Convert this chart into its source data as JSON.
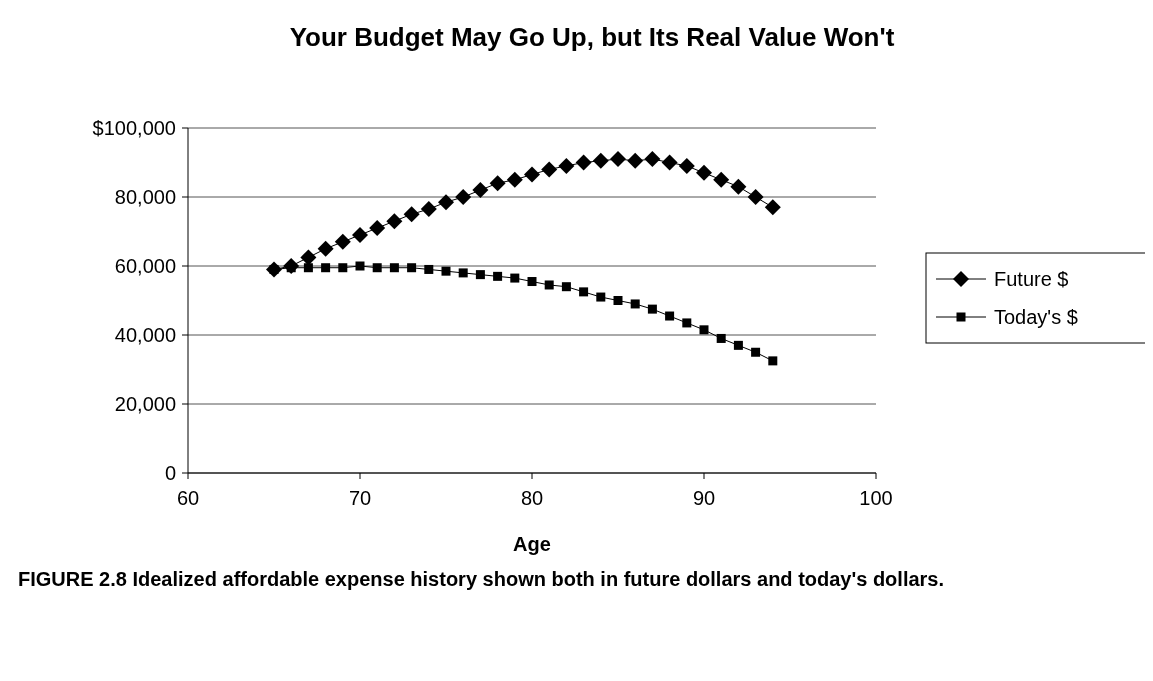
{
  "chart_data": {
    "type": "line",
    "title": "Your Budget May Go Up, but Its Real Value Won't",
    "xlabel": "Age",
    "x": [
      65,
      66,
      67,
      68,
      69,
      70,
      71,
      72,
      73,
      74,
      75,
      76,
      77,
      78,
      79,
      80,
      81,
      82,
      83,
      84,
      85,
      86,
      87,
      88,
      89,
      90,
      91,
      92,
      93,
      94
    ],
    "series": [
      {
        "name": "Future $",
        "color": "#000000",
        "marker": "diamond",
        "values": [
          59000,
          60000,
          62500,
          65000,
          67000,
          69000,
          71000,
          73000,
          75000,
          76500,
          78500,
          80000,
          82000,
          84000,
          85000,
          86500,
          88000,
          89000,
          90000,
          90500,
          91000,
          90500,
          91000,
          90000,
          89000,
          87000,
          85000,
          83000,
          80000,
          77000
        ]
      },
      {
        "name": "Today's $",
        "color": "#000000",
        "marker": "square",
        "values": [
          59000,
          59500,
          59500,
          59500,
          59500,
          60000,
          59500,
          59500,
          59500,
          59000,
          58500,
          58000,
          57500,
          57000,
          56500,
          55500,
          54500,
          54000,
          52500,
          51000,
          50000,
          49000,
          47500,
          45500,
          43500,
          41500,
          39000,
          37000,
          35000,
          32500
        ]
      }
    ],
    "xlim": [
      60,
      100
    ],
    "xticks": [
      60,
      70,
      80,
      90,
      100
    ],
    "ylim": [
      0,
      100000
    ],
    "yticks": [
      0,
      {
        "value": 20000,
        "label": "20,000"
      },
      {
        "value": 40000,
        "label": "40,000"
      },
      {
        "value": 60000,
        "label": "60,000"
      },
      {
        "value": 80000,
        "label": "80,000"
      },
      {
        "value": 100000,
        "label": "$100,000"
      }
    ],
    "grid": "y",
    "legend": "right",
    "line_style": "solid",
    "annotations": [
      "FIGURE 2.8 Idealized affordable expense history shown both in future dollars and today's dollars."
    ]
  }
}
